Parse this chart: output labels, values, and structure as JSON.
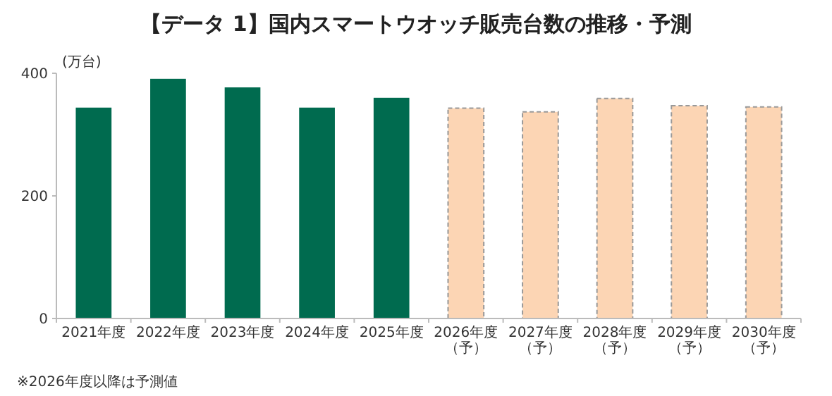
{
  "chart_data": {
    "type": "bar",
    "title": "【データ 1】国内スマートウオッチ販売台数の推移・予測",
    "ylabel": "(万台)",
    "categories": [
      "2021年度",
      "2022年度",
      "2023年度",
      "2024年度",
      "2025年度",
      "2026年度（予）",
      "2027年度（予）",
      "2028年度（予）",
      "2029年度（予）",
      "2030年度（予）"
    ],
    "stacked": true,
    "series": [
      {
        "color": "#006b4f",
        "values": [
          344,
          391,
          377,
          344,
          360,
          null,
          null,
          null,
          null,
          null
        ]
      },
      {
        "color": "#fcd5b4",
        "line_style": "dashed",
        "values": [
          null,
          null,
          null,
          null,
          null,
          343,
          337,
          359,
          347,
          345
        ]
      }
    ],
    "ylim": [
      0,
      400
    ],
    "yticks": [
      0,
      200,
      400
    ],
    "grid": false,
    "annotations": [
      "※2026年度以降は予測値"
    ]
  }
}
